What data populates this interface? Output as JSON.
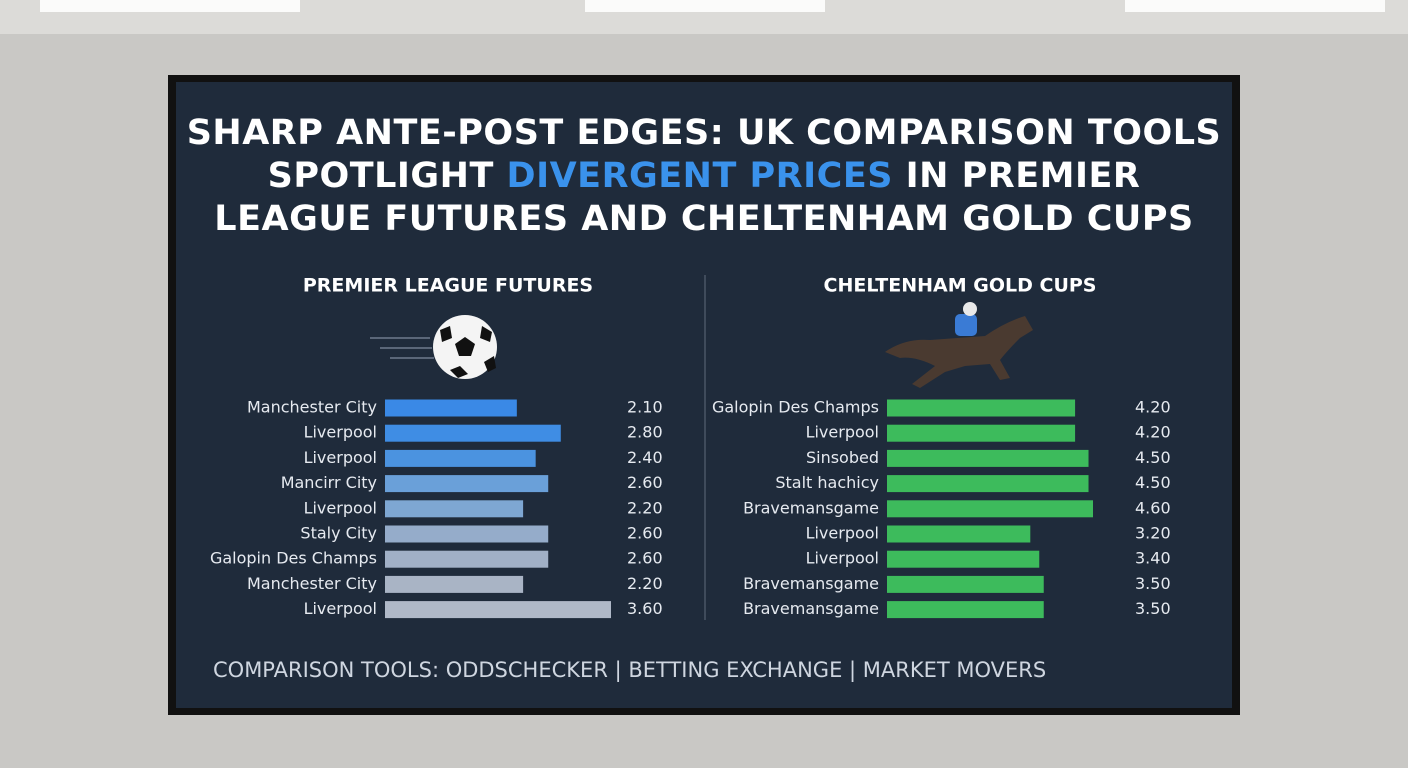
{
  "title": {
    "line1": "SHARP ANTE-POST EDGES: UK COMPARISON TOOLS",
    "line2_start": "SPOTLIGHT",
    "line2_highlight": "DIVERGENT PRICES",
    "line2_end": "IN PREMIER",
    "line3": "LEAGUE FUTURES AND CHELTENHAM GOLD CUPS"
  },
  "footer": "COMPARISON TOOLS: ODDSCHECKER | BETTING EXCHANGE | MARKET MOVERS",
  "chart_data": [
    {
      "type": "bar",
      "orientation": "horizontal",
      "title": "PREMIER LEAGUE FUTURES",
      "categories": [
        "Manchester City",
        "Liverpool",
        "Liverpool",
        "Mancirr City",
        "Liverpool",
        "Staly City",
        "Galopin Des Champs",
        "Manchester City",
        "Liverpool"
      ],
      "values": [
        2.1,
        2.8,
        2.4,
        2.6,
        2.2,
        2.6,
        2.6,
        2.2,
        3.6
      ],
      "value_labels": [
        "2.10",
        "2.80",
        "2.40",
        "2.60",
        "2.20",
        "2.60",
        "2.60",
        "2.20",
        "3.60"
      ],
      "colors": [
        "#3a89e6",
        "#3f8de4",
        "#4b93e0",
        "#6aa0d9",
        "#7ea7d3",
        "#95acca",
        "#a1b0c6",
        "#a9b4c5",
        "#b0b9c8"
      ]
    },
    {
      "type": "bar",
      "orientation": "horizontal",
      "title": "CHELTENHAM GOLD CUPS",
      "categories": [
        "Galopin Des Champs",
        "Liverpool",
        "Sinsobed",
        "Stalt hachicy",
        "Bravemansgame",
        "Liverpool",
        "Liverpool",
        "Bravemansgame",
        "Bravemansgame"
      ],
      "values": [
        4.2,
        4.2,
        4.5,
        4.5,
        4.6,
        3.2,
        3.4,
        3.5,
        3.5
      ],
      "value_labels": [
        "4.20",
        "4.20",
        "4.50",
        "4.50",
        "4.60",
        "3.20",
        "3.40",
        "3.50",
        "3.50"
      ],
      "color": "#3dbb5c"
    }
  ]
}
